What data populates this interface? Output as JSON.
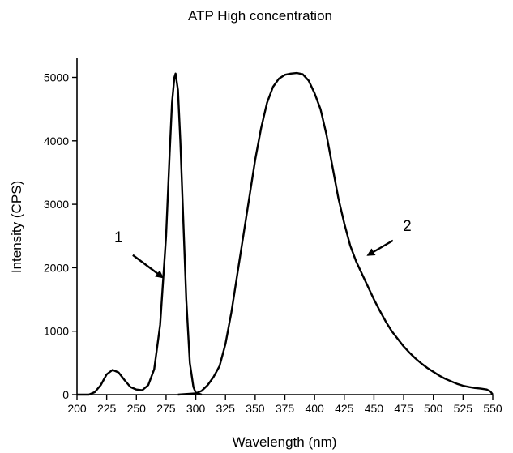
{
  "chart_data": {
    "type": "line",
    "title": "ATP High concentration",
    "xlabel": "Wavelength (nm)",
    "ylabel": "Intensity (CPS)",
    "xlim": [
      200,
      550
    ],
    "ylim": [
      0,
      5300
    ],
    "x_ticks": [
      200,
      225,
      250,
      275,
      300,
      325,
      350,
      375,
      400,
      425,
      450,
      475,
      500,
      525,
      550
    ],
    "y_ticks": [
      0,
      1000,
      2000,
      3000,
      4000,
      5000
    ],
    "grid": false,
    "legend": "none",
    "series": [
      {
        "points": [
          [
            200,
            0
          ],
          [
            210,
            0
          ],
          [
            215,
            40
          ],
          [
            220,
            150
          ],
          [
            225,
            320
          ],
          [
            230,
            390
          ],
          [
            235,
            350
          ],
          [
            240,
            230
          ],
          [
            245,
            120
          ],
          [
            250,
            80
          ],
          [
            255,
            70
          ],
          [
            260,
            150
          ],
          [
            265,
            400
          ],
          [
            270,
            1100
          ],
          [
            275,
            2500
          ],
          [
            278,
            3800
          ],
          [
            280,
            4600
          ],
          [
            282,
            5000
          ],
          [
            283,
            5060
          ],
          [
            285,
            4800
          ],
          [
            287,
            4000
          ],
          [
            290,
            2500
          ],
          [
            292,
            1500
          ],
          [
            295,
            500
          ],
          [
            298,
            120
          ],
          [
            300,
            30
          ],
          [
            305,
            0
          ]
        ]
      },
      {
        "points": [
          [
            285,
            0
          ],
          [
            300,
            20
          ],
          [
            305,
            60
          ],
          [
            310,
            150
          ],
          [
            315,
            280
          ],
          [
            320,
            450
          ],
          [
            325,
            800
          ],
          [
            330,
            1300
          ],
          [
            335,
            1900
          ],
          [
            340,
            2500
          ],
          [
            345,
            3100
          ],
          [
            350,
            3700
          ],
          [
            355,
            4200
          ],
          [
            360,
            4600
          ],
          [
            365,
            4850
          ],
          [
            370,
            4980
          ],
          [
            375,
            5040
          ],
          [
            380,
            5060
          ],
          [
            385,
            5070
          ],
          [
            390,
            5050
          ],
          [
            395,
            4950
          ],
          [
            400,
            4750
          ],
          [
            405,
            4500
          ],
          [
            410,
            4100
          ],
          [
            415,
            3600
          ],
          [
            420,
            3100
          ],
          [
            425,
            2700
          ],
          [
            430,
            2350
          ],
          [
            435,
            2100
          ],
          [
            440,
            1900
          ],
          [
            445,
            1700
          ],
          [
            450,
            1500
          ],
          [
            455,
            1320
          ],
          [
            460,
            1150
          ],
          [
            465,
            1000
          ],
          [
            470,
            880
          ],
          [
            475,
            760
          ],
          [
            480,
            660
          ],
          [
            485,
            570
          ],
          [
            490,
            490
          ],
          [
            495,
            420
          ],
          [
            500,
            360
          ],
          [
            505,
            300
          ],
          [
            510,
            250
          ],
          [
            515,
            210
          ],
          [
            520,
            170
          ],
          [
            525,
            140
          ],
          [
            530,
            120
          ],
          [
            535,
            105
          ],
          [
            540,
            95
          ],
          [
            545,
            80
          ],
          [
            548,
            50
          ],
          [
            550,
            0
          ]
        ]
      }
    ],
    "annotations": [
      {
        "text": "1",
        "label_at": [
          235,
          2400
        ],
        "arrow_from": [
          247,
          2200
        ],
        "arrow_to": [
          272,
          1850
        ]
      },
      {
        "text": "2",
        "label_at": [
          478,
          2580
        ],
        "arrow_from": [
          466,
          2430
        ],
        "arrow_to": [
          445,
          2200
        ]
      }
    ]
  }
}
